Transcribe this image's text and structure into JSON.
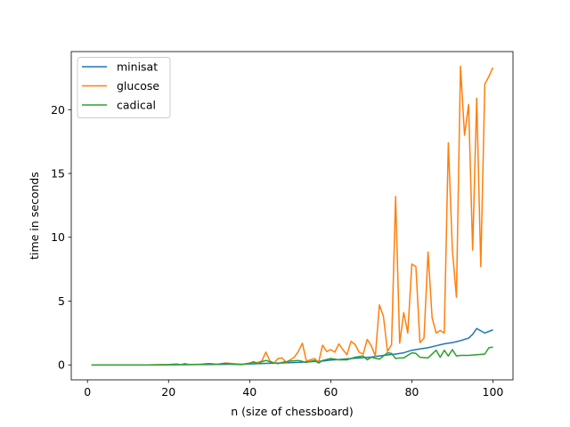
{
  "chart_data": {
    "type": "line",
    "title": "",
    "xlabel": "n (size of chessboard)",
    "ylabel": "time in seconds",
    "xlim": [
      -4,
      104.95
    ],
    "ylim": [
      -1.17,
      24.55
    ],
    "xticks": [
      0,
      20,
      40,
      60,
      80,
      100
    ],
    "yticks": [
      0,
      5,
      10,
      15,
      20
    ],
    "grid": false,
    "legend_position": "top-left",
    "series": [
      {
        "name": "minisat",
        "color": "#1f77b4",
        "x": [
          1,
          5,
          10,
          15,
          20,
          25,
          30,
          35,
          40,
          44,
          48,
          52,
          55,
          58,
          60,
          62,
          65,
          68,
          70,
          72,
          74,
          76,
          78,
          80,
          82,
          84,
          86,
          88,
          90,
          92,
          94,
          95,
          96,
          98,
          100
        ],
        "y": [
          0,
          0,
          0,
          0,
          0.01,
          0.02,
          0.03,
          0.05,
          0.08,
          0.12,
          0.15,
          0.2,
          0.25,
          0.3,
          0.38,
          0.42,
          0.5,
          0.56,
          0.62,
          0.7,
          0.78,
          0.85,
          0.95,
          1.15,
          1.25,
          1.35,
          1.5,
          1.65,
          1.75,
          1.9,
          2.1,
          2.4,
          2.85,
          2.5,
          2.75
        ]
      },
      {
        "name": "glucose",
        "color": "#ff7f0e",
        "x": [
          1,
          5,
          10,
          15,
          20,
          22,
          23,
          24,
          25,
          28,
          30,
          32,
          34,
          36,
          38,
          40,
          42,
          43,
          44,
          45,
          46,
          47,
          48,
          49,
          50,
          51,
          52,
          53,
          54,
          55,
          56,
          57,
          58,
          59,
          60,
          61,
          62,
          63,
          64,
          65,
          66,
          67,
          68,
          69,
          70,
          71,
          72,
          73,
          74,
          75,
          76,
          77,
          78,
          79,
          80,
          81,
          82,
          83,
          84,
          85,
          86,
          87,
          88,
          89,
          90,
          91,
          92,
          93,
          94,
          95,
          96,
          97,
          98,
          99,
          100
        ],
        "y": [
          0,
          0,
          0,
          0,
          0.02,
          0.08,
          0.02,
          0.1,
          0.03,
          0.05,
          0.1,
          0.05,
          0.15,
          0.1,
          0.05,
          0.15,
          0.2,
          0.3,
          1.0,
          0.3,
          0.15,
          0.5,
          0.55,
          0.2,
          0.4,
          0.6,
          1.05,
          1.7,
          0.3,
          0.4,
          0.5,
          0.2,
          1.55,
          1.05,
          1.2,
          1.0,
          1.65,
          1.2,
          0.8,
          1.85,
          1.6,
          1.0,
          0.85,
          2.0,
          1.5,
          0.7,
          4.7,
          3.8,
          1.05,
          1.6,
          13.2,
          1.7,
          4.1,
          2.5,
          7.9,
          7.7,
          1.75,
          2.1,
          8.85,
          3.7,
          2.5,
          2.7,
          2.5,
          17.4,
          9.0,
          5.3,
          23.4,
          18.0,
          20.4,
          9.0,
          20.9,
          7.7,
          22.0,
          22.6,
          23.3
        ]
      },
      {
        "name": "cadical",
        "color": "#2ca02c",
        "x": [
          1,
          5,
          10,
          15,
          20,
          22,
          23,
          24,
          25,
          28,
          30,
          32,
          34,
          36,
          38,
          40,
          41,
          42,
          43,
          44,
          45,
          46,
          47,
          48,
          50,
          52,
          54,
          56,
          57,
          58,
          60,
          62,
          64,
          66,
          68,
          69,
          70,
          72,
          74,
          75,
          76,
          77,
          78,
          80,
          81,
          82,
          84,
          86,
          87,
          88,
          89,
          90,
          91,
          92,
          94,
          96,
          98,
          99,
          100
        ],
        "y": [
          0,
          0,
          0,
          0,
          0.02,
          0.05,
          0.02,
          0.08,
          0.02,
          0.05,
          0.1,
          0.05,
          0.12,
          0.05,
          0.02,
          0.12,
          0.25,
          0.1,
          0.25,
          0.35,
          0.25,
          0.15,
          0.1,
          0.2,
          0.3,
          0.35,
          0.2,
          0.35,
          0.15,
          0.35,
          0.5,
          0.4,
          0.4,
          0.6,
          0.7,
          0.4,
          0.6,
          0.45,
          0.95,
          0.9,
          0.5,
          0.55,
          0.55,
          0.95,
          0.9,
          0.6,
          0.55,
          1.15,
          0.6,
          1.15,
          0.7,
          1.2,
          0.7,
          0.75,
          0.75,
          0.8,
          0.85,
          1.35,
          1.4
        ]
      }
    ]
  }
}
